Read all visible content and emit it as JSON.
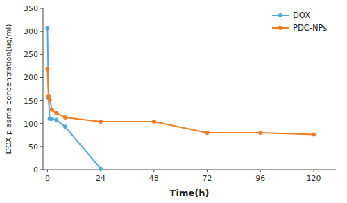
{
  "chart_data": {
    "type": "line",
    "xlabel": "Time(h)",
    "ylabel": "DOX plasma concentration(ug/ml)",
    "xlim": [
      -2,
      130
    ],
    "xticks": [
      0,
      24,
      48,
      72,
      96,
      120
    ],
    "ylim": [
      0,
      350
    ],
    "yticks": [
      0,
      50,
      100,
      150,
      200,
      250,
      300,
      350
    ],
    "grid": false,
    "legend": "upper right",
    "series": [
      {
        "name": "DOX",
        "color": "#4fa8d5",
        "marker": "circle",
        "x": [
          0,
          0.5,
          1,
          2,
          4,
          8,
          24
        ],
        "values": [
          307,
          155,
          110,
          110,
          108,
          93,
          2
        ]
      },
      {
        "name": "PDC-NPs",
        "color": "#f07c20",
        "marker": "circle",
        "x": [
          0,
          0.5,
          1,
          2,
          4,
          8,
          24,
          48,
          72,
          96,
          120
        ],
        "values": [
          218,
          160,
          152,
          130,
          123,
          113,
          104,
          104,
          80,
          80,
          76
        ]
      }
    ]
  }
}
